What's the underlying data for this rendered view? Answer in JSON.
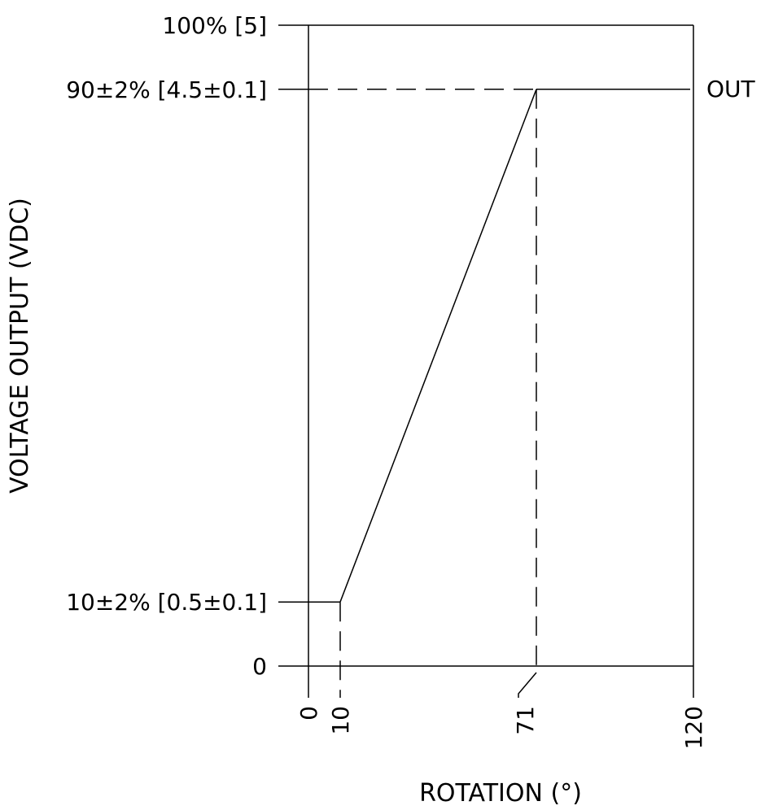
{
  "chart_data": {
    "type": "line",
    "xlabel": "ROTATION (°)",
    "ylabel": "VOLTAGE OUTPUT (VDC)",
    "xlim": [
      0,
      120
    ],
    "ylim": [
      0,
      100
    ],
    "grid": false,
    "x_ticks": [
      {
        "value": 0,
        "label": "0"
      },
      {
        "value": 10,
        "label": "10"
      },
      {
        "value": 71,
        "label": "71"
      },
      {
        "value": 120,
        "label": "120"
      }
    ],
    "y_ticks": [
      {
        "value": 0,
        "label": "0"
      },
      {
        "value": 10,
        "label": "10±2% [0.5±0.1]"
      },
      {
        "value": 90,
        "label": "90±2% [4.5±0.1]"
      },
      {
        "value": 100,
        "label": "100% [5]"
      }
    ],
    "series": [
      {
        "x": [
          0,
          10,
          71,
          120
        ],
        "y": [
          10,
          10,
          90,
          90
        ]
      }
    ],
    "annotations": [
      {
        "text": "OUT",
        "x": 120,
        "y": 90
      }
    ]
  }
}
